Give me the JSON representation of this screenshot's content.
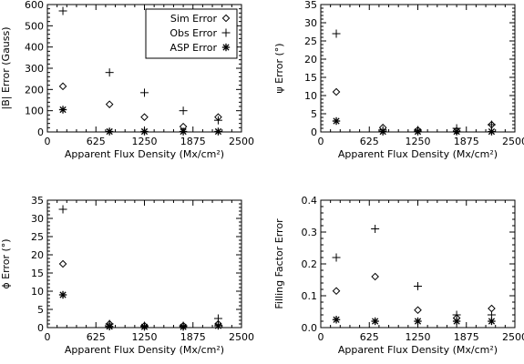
{
  "chart_data": [
    {
      "type": "scatter",
      "xlabel": "Apparent Flux Density (Mx/cm²)",
      "ylabel": "|B| Error (Gauss)",
      "xlim": [
        0,
        2500
      ],
      "ylim": [
        0,
        600
      ],
      "xticks": [
        "0",
        "625",
        "1250",
        "1875",
        "2500"
      ],
      "yticks": [
        "0",
        "100",
        "200",
        "300",
        "400",
        "500",
        "600"
      ],
      "legend_position": "top-right",
      "series": [
        {
          "name": "Sim Error",
          "marker": "diamond",
          "points": [
            [
              200,
              215
            ],
            [
              800,
              130
            ],
            [
              1250,
              70
            ],
            [
              1750,
              25
            ],
            [
              2200,
              70
            ]
          ]
        },
        {
          "name": "Obs Error",
          "marker": "plus",
          "points": [
            [
              200,
              570
            ],
            [
              800,
              280
            ],
            [
              1250,
              185
            ],
            [
              1750,
              100
            ],
            [
              2200,
              55
            ]
          ]
        },
        {
          "name": "ASP Error",
          "marker": "asterisk",
          "points": [
            [
              200,
              105
            ],
            [
              800,
              2
            ],
            [
              1250,
              2
            ],
            [
              1750,
              2
            ],
            [
              2200,
              2
            ]
          ]
        }
      ]
    },
    {
      "type": "scatter",
      "xlabel": "Apparent Flux Density (Mx/cm²)",
      "ylabel": "ψ Error (°)",
      "xlim": [
        0,
        2500
      ],
      "ylim": [
        0,
        35
      ],
      "xticks": [
        "0",
        "625",
        "1250",
        "1875",
        "2500"
      ],
      "yticks": [
        "0",
        "5",
        "10",
        "15",
        "20",
        "25",
        "30",
        "35"
      ],
      "series": [
        {
          "name": "Sim Error",
          "marker": "diamond",
          "points": [
            [
              200,
              11
            ],
            [
              800,
              1.2
            ],
            [
              1250,
              0.5
            ],
            [
              1750,
              0.3
            ],
            [
              2200,
              2
            ]
          ]
        },
        {
          "name": "Obs Error",
          "marker": "plus",
          "points": [
            [
              200,
              27
            ],
            [
              800,
              0.5
            ],
            [
              1250,
              0.5
            ],
            [
              1750,
              1
            ],
            [
              2200,
              2
            ]
          ]
        },
        {
          "name": "ASP Error",
          "marker": "asterisk",
          "points": [
            [
              200,
              3
            ],
            [
              800,
              0.1
            ],
            [
              1250,
              0.1
            ],
            [
              1750,
              0.1
            ],
            [
              2200,
              0.1
            ]
          ]
        }
      ]
    },
    {
      "type": "scatter",
      "xlabel": "Apparent Flux Density (Mx/cm²)",
      "ylabel": "ϕ Error (°)",
      "xlim": [
        0,
        2500
      ],
      "ylim": [
        0,
        35
      ],
      "xticks": [
        "0",
        "625",
        "1250",
        "1875",
        "2500"
      ],
      "yticks": [
        "0",
        "5",
        "10",
        "15",
        "20",
        "25",
        "30",
        "35"
      ],
      "series": [
        {
          "name": "Sim Error",
          "marker": "diamond",
          "points": [
            [
              200,
              17.5
            ],
            [
              800,
              1
            ],
            [
              1250,
              0.5
            ],
            [
              1750,
              0.5
            ],
            [
              2200,
              1
            ]
          ]
        },
        {
          "name": "Obs Error",
          "marker": "plus",
          "points": [
            [
              200,
              32.5
            ],
            [
              800,
              1
            ],
            [
              1250,
              0.5
            ],
            [
              1750,
              0.5
            ],
            [
              2200,
              2.5
            ]
          ]
        },
        {
          "name": "ASP Error",
          "marker": "asterisk",
          "points": [
            [
              200,
              9
            ],
            [
              800,
              0.3
            ],
            [
              1250,
              0.2
            ],
            [
              1750,
              0.2
            ],
            [
              2200,
              0.5
            ]
          ]
        }
      ]
    },
    {
      "type": "scatter",
      "xlabel": "Apparent Flux Density (Mx/cm²)",
      "ylabel": "Filling Factor Error",
      "xlim": [
        0,
        2500
      ],
      "ylim": [
        0,
        0.4
      ],
      "xticks": [
        "0",
        "625",
        "1250",
        "1875",
        "2500"
      ],
      "yticks": [
        "0.0",
        "0.1",
        "0.2",
        "0.3",
        "0.4"
      ],
      "series": [
        {
          "name": "Sim Error",
          "marker": "diamond",
          "points": [
            [
              200,
              0.115
            ],
            [
              700,
              0.16
            ],
            [
              1250,
              0.055
            ],
            [
              1750,
              0.03
            ],
            [
              2200,
              0.06
            ]
          ]
        },
        {
          "name": "Obs Error",
          "marker": "plus",
          "points": [
            [
              200,
              0.22
            ],
            [
              700,
              0.31
            ],
            [
              1250,
              0.13
            ],
            [
              1750,
              0.04
            ],
            [
              2200,
              0.04
            ]
          ]
        },
        {
          "name": "ASP Error",
          "marker": "asterisk",
          "points": [
            [
              200,
              0.025
            ],
            [
              700,
              0.02
            ],
            [
              1250,
              0.02
            ],
            [
              1750,
              0.02
            ],
            [
              2200,
              0.02
            ]
          ]
        }
      ]
    }
  ]
}
